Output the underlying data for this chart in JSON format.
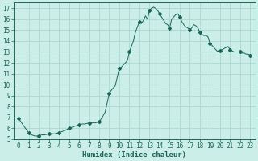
{
  "xlabel": "Humidex (Indice chaleur)",
  "background_color": "#cceee8",
  "grid_color": "#aad8d0",
  "line_color": "#1a6655",
  "marker_color": "#1a6655",
  "xlim": [
    -0.5,
    23.5
  ],
  "ylim": [
    5,
    17.5
  ],
  "yticks": [
    5,
    6,
    7,
    8,
    9,
    10,
    11,
    12,
    13,
    14,
    15,
    16,
    17
  ],
  "xticks": [
    0,
    1,
    2,
    3,
    4,
    5,
    6,
    7,
    8,
    9,
    10,
    11,
    12,
    13,
    14,
    15,
    16,
    17,
    18,
    19,
    20,
    21,
    22,
    23
  ],
  "x": [
    0,
    0.3,
    0.6,
    1.0,
    1.3,
    1.6,
    2.0,
    2.3,
    2.6,
    3.0,
    3.3,
    3.6,
    4.0,
    4.3,
    4.6,
    5.0,
    5.3,
    5.6,
    6.0,
    6.3,
    6.6,
    7.0,
    7.3,
    7.6,
    8.0,
    8.3,
    8.6,
    9.0,
    9.3,
    9.6,
    10.0,
    10.2,
    10.4,
    10.6,
    10.8,
    11.0,
    11.2,
    11.4,
    11.6,
    11.8,
    12.0,
    12.2,
    12.4,
    12.6,
    12.8,
    13.0,
    13.2,
    13.4,
    13.6,
    13.8,
    14.0,
    14.2,
    14.4,
    14.6,
    14.8,
    15.0,
    15.2,
    15.4,
    15.6,
    15.8,
    16.0,
    16.2,
    16.4,
    16.6,
    16.8,
    17.0,
    17.2,
    17.4,
    17.6,
    17.8,
    18.0,
    18.2,
    18.4,
    18.6,
    18.8,
    19.0,
    19.2,
    19.4,
    19.6,
    19.8,
    20.0,
    20.2,
    20.4,
    20.6,
    20.8,
    21.0,
    21.2,
    21.4,
    21.6,
    21.8,
    22.0,
    22.2,
    22.4,
    22.6,
    22.8,
    23.0
  ],
  "y": [
    6.9,
    6.5,
    6.1,
    5.6,
    5.4,
    5.3,
    5.3,
    5.4,
    5.4,
    5.5,
    5.5,
    5.5,
    5.6,
    5.7,
    5.8,
    6.0,
    6.1,
    6.2,
    6.3,
    6.4,
    6.4,
    6.5,
    6.5,
    6.5,
    6.6,
    7.0,
    7.5,
    9.2,
    9.6,
    9.9,
    11.5,
    11.6,
    11.8,
    12.0,
    12.2,
    13.0,
    13.5,
    14.0,
    14.8,
    15.3,
    15.8,
    15.6,
    15.9,
    16.3,
    16.0,
    16.8,
    17.0,
    17.1,
    17.0,
    16.8,
    16.5,
    16.2,
    15.9,
    15.6,
    15.5,
    15.2,
    16.0,
    16.2,
    16.4,
    16.5,
    16.2,
    15.8,
    15.5,
    15.3,
    15.2,
    15.0,
    15.2,
    15.5,
    15.4,
    15.2,
    14.8,
    14.6,
    14.5,
    14.5,
    14.4,
    13.8,
    13.6,
    13.4,
    13.2,
    13.0,
    13.1,
    13.2,
    13.3,
    13.4,
    13.5,
    13.2,
    13.1,
    13.0,
    13.0,
    13.0,
    13.0,
    12.9,
    12.9,
    12.8,
    12.8,
    12.7
  ],
  "marker_x": [
    0,
    1,
    2,
    3,
    4,
    5,
    6,
    7,
    8,
    9,
    10,
    11,
    12,
    13,
    14,
    15,
    16,
    17,
    18,
    19,
    20,
    21,
    22,
    23
  ],
  "marker_y": [
    6.9,
    5.6,
    5.3,
    5.5,
    5.6,
    6.0,
    6.3,
    6.5,
    6.6,
    9.2,
    11.5,
    13.0,
    15.8,
    16.8,
    16.5,
    15.2,
    16.2,
    15.0,
    14.8,
    13.8,
    13.1,
    13.2,
    13.0,
    12.7
  ]
}
